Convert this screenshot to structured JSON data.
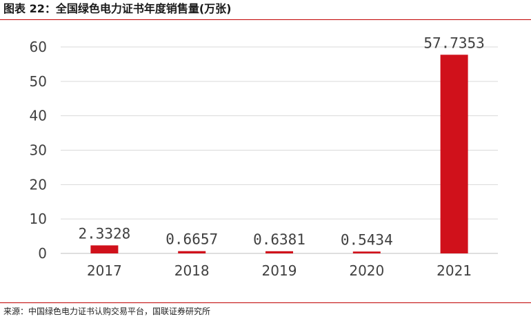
{
  "header": {
    "title": "图表 22：全国绿色电力证书年度销售量(万张)"
  },
  "footer": {
    "source": "来源：中国绿色电力证书认购交易平台，国联证券研究所"
  },
  "colors": {
    "accent": "#c00000",
    "bar": "#d0111b",
    "grid": "#d9d9d9",
    "text": "#404040"
  },
  "chart_data": {
    "type": "bar",
    "title": "全国绿色电力证书年度销售量(万张)",
    "categories": [
      "2017",
      "2018",
      "2019",
      "2020",
      "2021"
    ],
    "values": [
      2.3328,
      0.6657,
      0.6381,
      0.5434,
      57.7353
    ],
    "data_labels": [
      "2.3328",
      "0.6657",
      "0.6381",
      "0.5434",
      "57.7353"
    ],
    "ylim": [
      0,
      60
    ],
    "yticks": [
      0,
      10,
      20,
      30,
      40,
      50,
      60
    ],
    "grid": true,
    "legend": "none"
  }
}
